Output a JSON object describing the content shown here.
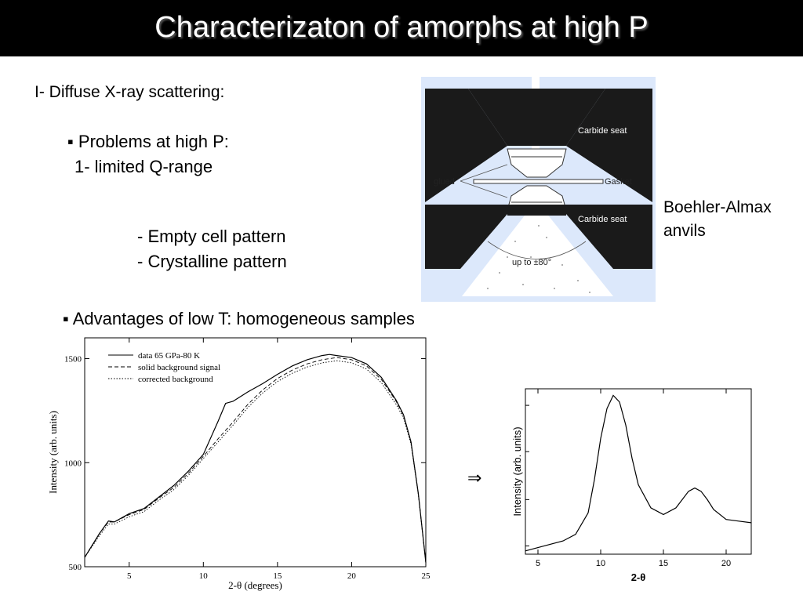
{
  "title": "Characterizaton of amorphs at high P",
  "section": "I- Diffuse X-ray scattering:",
  "problems_heading": "▪ Problems at high P:",
  "problem_1": "1- limited Q-range",
  "sub_items": [
    "- Empty cell pattern",
    "- Crystalline pattern"
  ],
  "advantages": "▪ Advantages of low T: homogeneous samples",
  "caption": [
    "Boehler-Almax",
    "anvils"
  ],
  "arrow": "⇒",
  "diagram": {
    "labels": {
      "carbide_top": "Carbide seat",
      "carbide_bottom": "Carbide seat",
      "glued": "glued",
      "gasket": "Gasket",
      "angle": "up to ±80°"
    },
    "colors": {
      "background": "#dce8fb",
      "anvil": "#1a1a1a"
    }
  },
  "chart_data": [
    {
      "type": "line",
      "xlabel": "2-θ  (degrees)",
      "ylabel": "Intensity (arb. units)",
      "xlim": [
        2,
        25
      ],
      "ylim": [
        500,
        1600
      ],
      "xticks": [
        5,
        10,
        15,
        20,
        25
      ],
      "yticks": [
        500,
        1000,
        1500
      ],
      "legend_position": "top-left",
      "series": [
        {
          "name": "data 65 GPa-80 K",
          "style": "solid",
          "x": [
            2,
            3,
            3.6,
            4,
            5,
            6,
            7,
            8,
            9,
            10,
            11,
            11.5,
            12,
            13,
            14,
            15,
            16,
            17,
            18,
            18.5,
            19,
            20,
            21,
            22,
            23,
            23.5,
            24,
            24.5,
            25
          ],
          "y": [
            545,
            660,
            720,
            715,
            755,
            780,
            835,
            890,
            960,
            1040,
            1200,
            1285,
            1295,
            1340,
            1380,
            1425,
            1465,
            1495,
            1515,
            1520,
            1515,
            1505,
            1475,
            1410,
            1300,
            1230,
            1100,
            850,
            520
          ]
        },
        {
          "name": "solid background signal",
          "style": "dashed",
          "x": [
            2,
            3,
            3.6,
            4,
            5,
            6,
            7,
            8,
            9,
            10,
            11,
            12,
            13,
            14,
            15,
            16,
            17,
            18,
            19,
            20,
            21,
            22,
            23,
            23.5,
            24,
            24.5,
            25
          ],
          "y": [
            545,
            660,
            715,
            715,
            750,
            775,
            830,
            880,
            950,
            1030,
            1115,
            1195,
            1280,
            1350,
            1405,
            1445,
            1475,
            1495,
            1505,
            1495,
            1465,
            1400,
            1295,
            1225,
            1100,
            850,
            520
          ]
        },
        {
          "name": "corrected background",
          "style": "dotted",
          "x": [
            2,
            3,
            3.6,
            4,
            5,
            6,
            7,
            8,
            9,
            10,
            11,
            12,
            13,
            14,
            15,
            16,
            17,
            18,
            19,
            20,
            21,
            22,
            23,
            23.5,
            24,
            24.5,
            25
          ],
          "y": [
            545,
            650,
            705,
            705,
            740,
            765,
            820,
            870,
            940,
            1020,
            1100,
            1180,
            1265,
            1335,
            1390,
            1430,
            1460,
            1480,
            1490,
            1480,
            1450,
            1385,
            1280,
            1215,
            1090,
            845,
            520
          ]
        }
      ]
    },
    {
      "type": "line",
      "xlabel": "2-θ",
      "ylabel": "Intensity (arb. units)",
      "xlim": [
        4,
        22
      ],
      "ylim": [
        0,
        1
      ],
      "xticks": [
        5,
        10,
        15,
        20
      ],
      "series": [
        {
          "x": [
            4,
            5,
            6,
            7,
            8,
            9,
            9.5,
            10,
            10.5,
            11,
            11.5,
            12,
            12.5,
            13,
            14,
            15,
            16,
            17,
            17.5,
            18,
            18.5,
            19,
            20,
            21,
            22
          ],
          "y": [
            0.02,
            0.04,
            0.06,
            0.08,
            0.12,
            0.25,
            0.45,
            0.7,
            0.88,
            0.96,
            0.92,
            0.78,
            0.58,
            0.42,
            0.28,
            0.24,
            0.28,
            0.38,
            0.4,
            0.38,
            0.33,
            0.27,
            0.21,
            0.2,
            0.19
          ]
        }
      ]
    }
  ]
}
